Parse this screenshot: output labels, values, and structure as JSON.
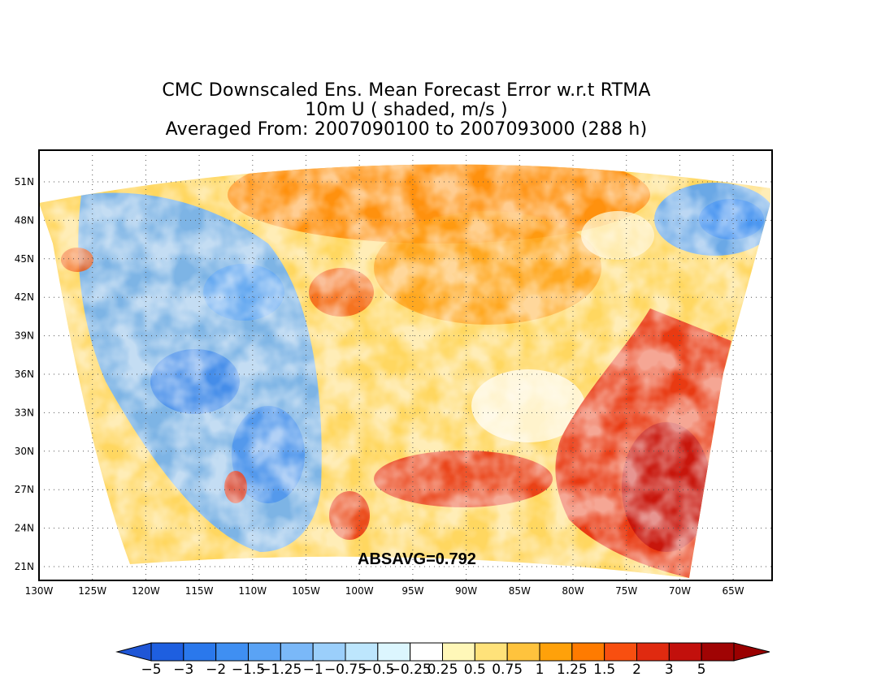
{
  "title": {
    "line1": "CMC Downscaled Ens. Mean Forecast Error w.r.t RTMA",
    "line2": "10m U ( shaded, m/s )",
    "line3": "Averaged From: 2007090100 to 2007093000 (288 h)"
  },
  "map": {
    "lat_labels": [
      "51N",
      "48N",
      "45N",
      "42N",
      "39N",
      "36N",
      "33N",
      "30N",
      "27N",
      "24N",
      "21N"
    ],
    "lon_labels": [
      "130W",
      "125W",
      "120W",
      "115W",
      "110W",
      "105W",
      "100W",
      "95W",
      "90W",
      "85W",
      "80W",
      "75W",
      "70W",
      "65W"
    ],
    "absavg": "ABSAVG=0.792",
    "grid": "dotted"
  },
  "colorbar": {
    "labels": [
      "-5",
      "-3",
      "-2",
      "-1.5",
      "-1.25",
      "-1",
      "-0.75",
      "-0.5",
      "-0.25",
      "0.25",
      "0.5",
      "0.75",
      "1",
      "1.25",
      "1.5",
      "2",
      "3",
      "5"
    ],
    "colors": [
      "#1e5fe0",
      "#2a78ec",
      "#3f8ff2",
      "#5aa3f5",
      "#7ab8f8",
      "#9bcffb",
      "#bde6fd",
      "#dcf6fe",
      "#ffffff",
      "#fff7b8",
      "#ffe27a",
      "#ffc33d",
      "#ffa10a",
      "#ff7b00",
      "#f84f10",
      "#e02a10",
      "#c2100c",
      "#a00404"
    ],
    "low_arrow_color": "#1f56d6",
    "high_arrow_color": "#9a0000"
  }
}
